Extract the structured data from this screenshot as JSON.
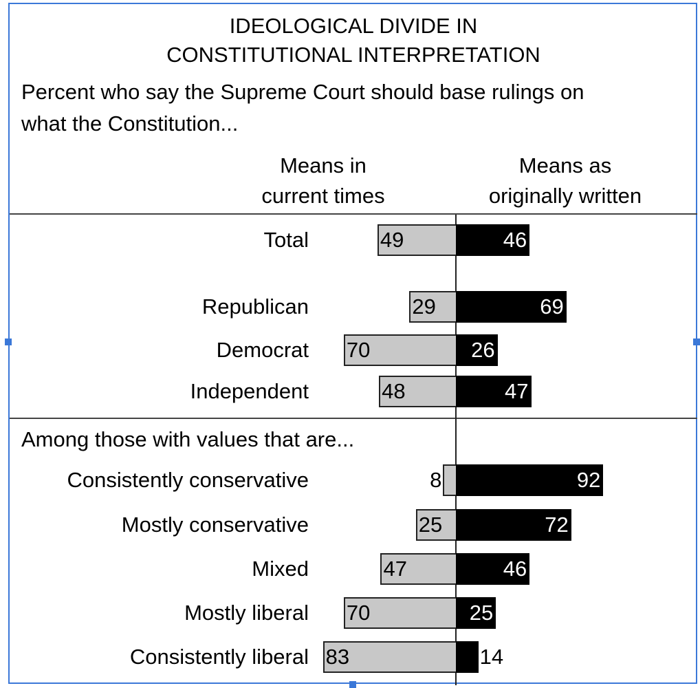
{
  "title_line1": "IDEOLOGICAL DIVIDE IN",
  "title_line2": "CONSTITUTIONAL INTERPRETATION",
  "subtitle_line1": "Percent who say the Supreme Court should base rulings on",
  "subtitle_line2": "what the Constitution...",
  "left_header_line1": "Means in",
  "left_header_line2": "current times",
  "right_header_line1": "Means as",
  "right_header_line2": "originally written",
  "section_label": "Among those with values that are...",
  "colors": {
    "current": "#c8c8c8",
    "original": "#000000",
    "selection": "#3b78d8"
  },
  "chart_data": {
    "type": "bar",
    "orientation": "horizontal-diverging",
    "title": "IDEOLOGICAL DIVIDE IN CONSTITUTIONAL INTERPRETATION",
    "categories": [
      "Total",
      "Republican",
      "Democrat",
      "Independent",
      "Consistently conservative",
      "Mostly conservative",
      "Mixed",
      "Mostly liberal",
      "Consistently liberal"
    ],
    "series": [
      {
        "name": "Means in current times",
        "values": [
          49,
          29,
          70,
          48,
          8,
          25,
          47,
          70,
          83
        ]
      },
      {
        "name": "Means as originally written",
        "values": [
          46,
          69,
          26,
          47,
          92,
          72,
          46,
          25,
          14
        ]
      }
    ],
    "xlim": [
      0,
      100
    ]
  }
}
